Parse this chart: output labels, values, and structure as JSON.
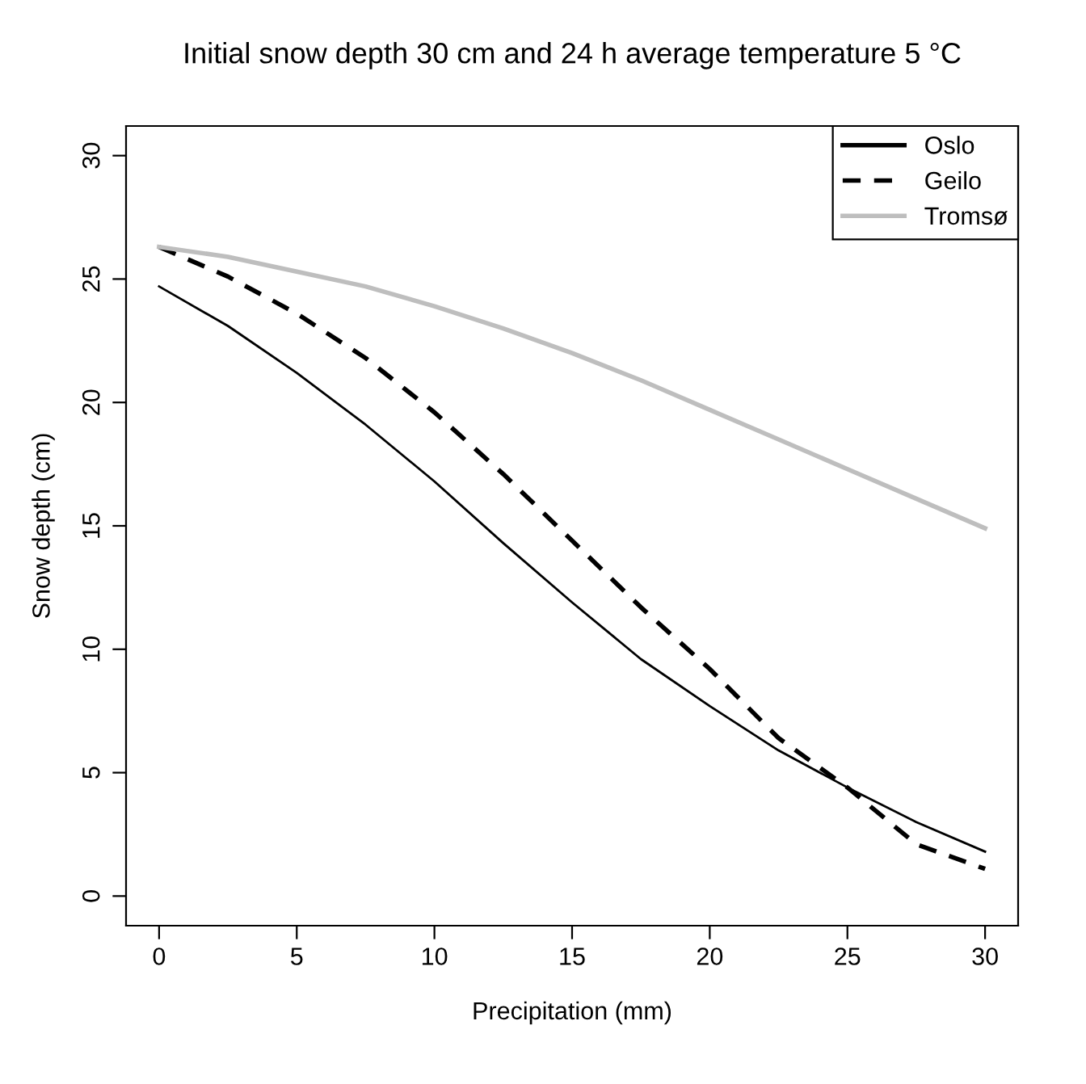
{
  "chart_data": {
    "type": "line",
    "title": "Initial snow depth 30 cm and 24 h average temperature 5 °C",
    "xlabel": "Precipitation (mm)",
    "ylabel": "Snow depth (cm)",
    "x": [
      0,
      2.5,
      5,
      7.5,
      10,
      12.5,
      15,
      17.5,
      20,
      22.5,
      25,
      27.5,
      30
    ],
    "series": [
      {
        "name": "Oslo",
        "color": "#000000",
        "line_style": "solid",
        "values": [
          24.7,
          23.1,
          21.2,
          19.1,
          16.8,
          14.3,
          11.9,
          9.6,
          7.7,
          5.9,
          4.4,
          3.0,
          1.8
        ]
      },
      {
        "name": "Geilo",
        "color": "#000000",
        "line_style": "dashed",
        "values": [
          26.3,
          25.1,
          23.6,
          21.8,
          19.6,
          17.1,
          14.4,
          11.7,
          9.2,
          6.4,
          4.4,
          2.1,
          1.1
        ]
      },
      {
        "name": "Tromsø",
        "color": "#bebebe",
        "line_style": "solid",
        "values": [
          26.3,
          25.9,
          25.3,
          24.7,
          23.9,
          23.0,
          22.0,
          20.9,
          19.7,
          18.5,
          17.3,
          16.1,
          14.9
        ]
      }
    ],
    "xlim": [
      -1.2,
      31.2
    ],
    "ylim": [
      -1.2,
      31.2
    ],
    "xticks": [
      0,
      5,
      10,
      15,
      20,
      25,
      30
    ],
    "yticks": [
      0,
      5,
      10,
      15,
      20,
      25,
      30
    ],
    "grid": false,
    "legend": "top right",
    "marker": "none"
  }
}
